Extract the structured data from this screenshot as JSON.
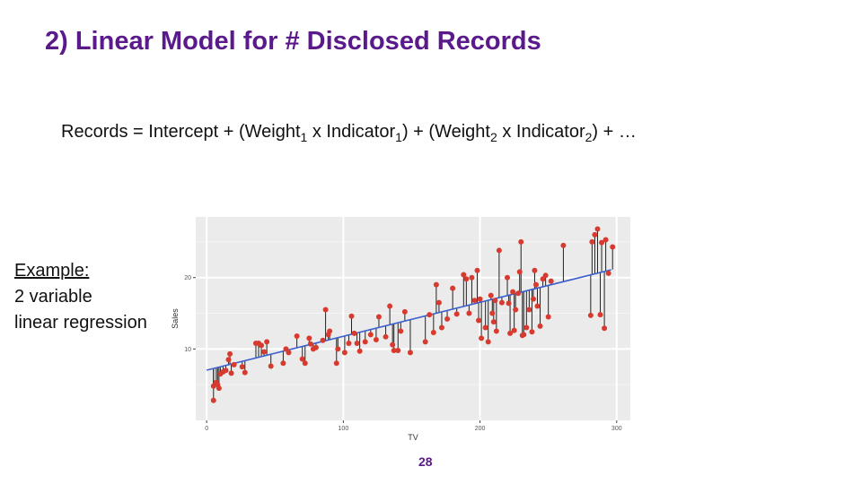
{
  "slide": {
    "title": "2) Linear Model for # Disclosed Records",
    "page_number": "28",
    "title_color": "#5b1a8b"
  },
  "formula": {
    "lhs": "Records",
    "eq": "=",
    "intercept": "Intercept",
    "plus": "+",
    "weight_word": "Weight",
    "x_sign": "x",
    "indicator_word": "Indicator",
    "sub1": "1",
    "sub2": "2",
    "open": "(",
    "close": ")",
    "ellipsis": "…"
  },
  "example": {
    "heading": "Example:",
    "line1": "2 variable",
    "line2": "linear regression"
  },
  "chart_data": {
    "type": "scatter",
    "xlabel": "TV",
    "ylabel": "Sales",
    "xlim": [
      -8,
      310
    ],
    "ylim": [
      0,
      28.5
    ],
    "xticks": [
      0,
      100,
      200,
      300
    ],
    "yticks": [
      10,
      20
    ],
    "grid": true,
    "background": "#ebebeb",
    "point_color": "#d73a2e",
    "line_color": "#3b5fcc",
    "regression": {
      "intercept": 7.03,
      "slope": 0.0475
    },
    "points": [
      [
        5,
        2.8
      ],
      [
        5,
        4.8
      ],
      [
        7,
        5.3
      ],
      [
        8,
        5.0
      ],
      [
        9,
        4.5
      ],
      [
        10,
        6.5
      ],
      [
        12,
        6.8
      ],
      [
        14,
        7.0
      ],
      [
        16,
        8.5
      ],
      [
        17,
        9.3
      ],
      [
        18,
        6.6
      ],
      [
        20,
        7.8
      ],
      [
        26,
        7.5
      ],
      [
        28,
        6.7
      ],
      [
        36,
        10.8
      ],
      [
        38,
        10.8
      ],
      [
        40,
        10.5
      ],
      [
        42,
        9.6
      ],
      [
        44,
        11.0
      ],
      [
        47,
        7.6
      ],
      [
        56,
        8.0
      ],
      [
        58,
        10.0
      ],
      [
        60,
        9.5
      ],
      [
        66,
        11.8
      ],
      [
        70,
        8.6
      ],
      [
        72,
        8.0
      ],
      [
        75,
        11.5
      ],
      [
        76,
        10.7
      ],
      [
        78,
        10.0
      ],
      [
        80,
        10.2
      ],
      [
        85,
        11.2
      ],
      [
        87,
        15.5
      ],
      [
        89,
        12.0
      ],
      [
        90,
        12.5
      ],
      [
        95,
        8.0
      ],
      [
        96,
        10.0
      ],
      [
        101,
        9.5
      ],
      [
        104,
        10.8
      ],
      [
        106,
        14.6
      ],
      [
        108,
        12.2
      ],
      [
        110,
        10.8
      ],
      [
        112,
        9.7
      ],
      [
        116,
        11.0
      ],
      [
        120,
        12.0
      ],
      [
        124,
        11.3
      ],
      [
        126,
        14.5
      ],
      [
        131,
        11.7
      ],
      [
        134,
        16.0
      ],
      [
        136,
        10.6
      ],
      [
        137,
        9.8
      ],
      [
        140,
        9.8
      ],
      [
        142,
        12.5
      ],
      [
        145,
        15.2
      ],
      [
        149,
        9.5
      ],
      [
        160,
        11.0
      ],
      [
        163,
        14.8
      ],
      [
        166,
        12.3
      ],
      [
        168,
        19.0
      ],
      [
        170,
        16.5
      ],
      [
        172,
        13.0
      ],
      [
        176,
        14.2
      ],
      [
        180,
        18.5
      ],
      [
        183,
        14.9
      ],
      [
        188,
        20.4
      ],
      [
        190,
        19.8
      ],
      [
        192,
        15.0
      ],
      [
        194,
        20.0
      ],
      [
        196,
        16.8
      ],
      [
        198,
        21.0
      ],
      [
        199,
        14.0
      ],
      [
        200,
        17.0
      ],
      [
        201,
        11.5
      ],
      [
        204,
        13.0
      ],
      [
        206,
        11.0
      ],
      [
        208,
        17.5
      ],
      [
        209,
        15.0
      ],
      [
        210,
        13.8
      ],
      [
        211,
        16.8
      ],
      [
        212,
        12.5
      ],
      [
        214,
        23.8
      ],
      [
        216,
        16.5
      ],
      [
        220,
        20.0
      ],
      [
        221,
        16.4
      ],
      [
        222,
        12.2
      ],
      [
        224,
        18.0
      ],
      [
        225,
        12.6
      ],
      [
        226,
        15.5
      ],
      [
        228,
        17.8
      ],
      [
        229,
        20.8
      ],
      [
        230,
        25.0
      ],
      [
        231,
        11.9
      ],
      [
        232,
        12.0
      ],
      [
        234,
        13.0
      ],
      [
        236,
        15.5
      ],
      [
        238,
        12.4
      ],
      [
        239,
        17.0
      ],
      [
        240,
        21.0
      ],
      [
        241,
        19.0
      ],
      [
        242,
        16.0
      ],
      [
        244,
        13.2
      ],
      [
        246,
        19.8
      ],
      [
        248,
        20.3
      ],
      [
        250,
        14.5
      ],
      [
        252,
        19.5
      ],
      [
        261,
        24.5
      ],
      [
        281,
        14.7
      ],
      [
        282,
        25.0
      ],
      [
        284,
        26.0
      ],
      [
        286,
        26.8
      ],
      [
        288,
        14.8
      ],
      [
        289,
        24.9
      ],
      [
        291,
        12.9
      ],
      [
        292,
        25.3
      ],
      [
        294,
        20.6
      ],
      [
        297,
        24.3
      ]
    ]
  }
}
